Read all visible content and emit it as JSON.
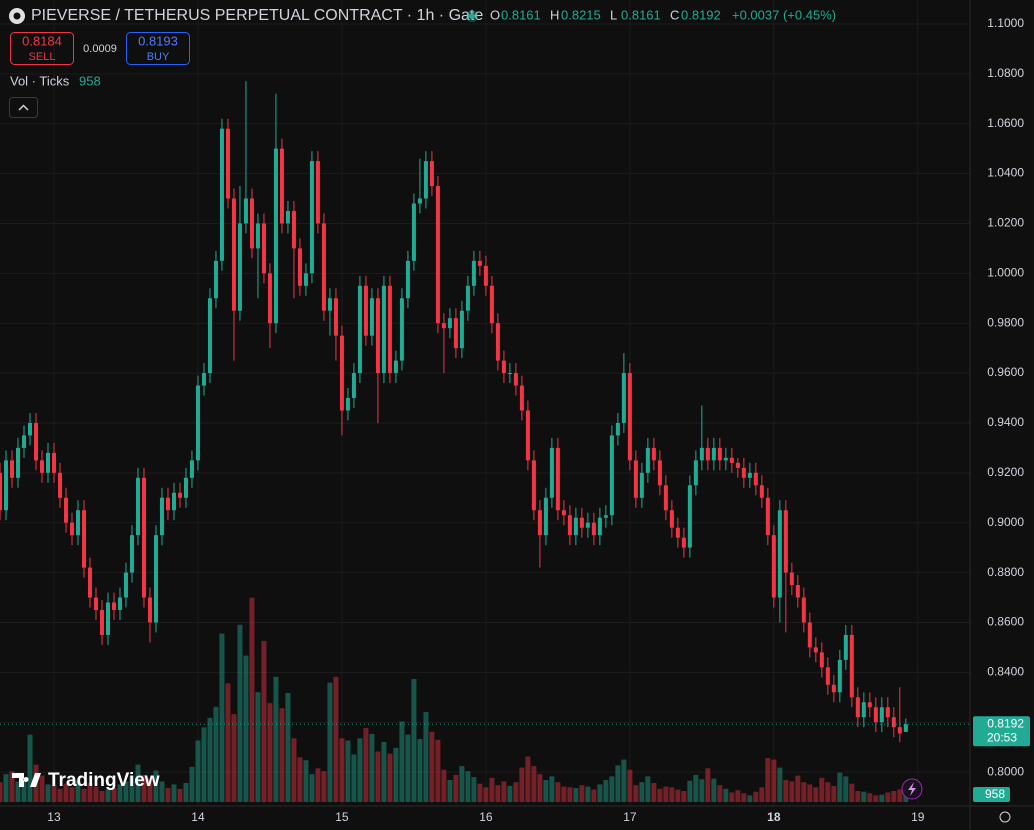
{
  "chart_data": {
    "type": "candlestick",
    "title": "PIEVERSE / TETHERUS PERPETUAL CONTRACT · 1h · Gate",
    "ohlc_keys": [
      "O",
      "H",
      "L",
      "C"
    ],
    "change": "+0.0037 (+0.45%)",
    "sell": {
      "price": 0.8184,
      "label": "SELL"
    },
    "spread": 0.0009,
    "buy": {
      "price": 0.8193,
      "label": "BUY"
    },
    "volume_legend": "Vol · Ticks",
    "countdown": "20:53",
    "branding": "TradingView",
    "up_color": "#22ab94",
    "down_color": "#f23645",
    "grid": true,
    "ylim": [
      0.7864,
      1.1096
    ],
    "yticks": [
      {
        "value": 1.1,
        "label": "1.1000"
      },
      {
        "value": 1.08,
        "label": "1.0800"
      },
      {
        "value": 1.06,
        "label": "1.0600"
      },
      {
        "value": 1.04,
        "label": "1.0400"
      },
      {
        "value": 1.02,
        "label": "1.0200"
      },
      {
        "value": 1.0,
        "label": "1.0000"
      },
      {
        "value": 0.98,
        "label": "0.9800"
      },
      {
        "value": 0.96,
        "label": "0.9600"
      },
      {
        "value": 0.94,
        "label": "0.9400"
      },
      {
        "value": 0.92,
        "label": "0.9200"
      },
      {
        "value": 0.9,
        "label": "0.9000"
      },
      {
        "value": 0.88,
        "label": "0.8800"
      },
      {
        "value": 0.86,
        "label": "0.8600"
      },
      {
        "value": 0.84,
        "label": "0.8400"
      },
      {
        "value": 0.82,
        "label": "0.8200"
      },
      {
        "value": 0.8,
        "label": "0.8000"
      }
    ],
    "xlim": [
      0,
      161.7
    ],
    "xticks": [
      {
        "value": 9,
        "label": "13"
      },
      {
        "value": 33,
        "label": "14"
      },
      {
        "value": 57,
        "label": "15"
      },
      {
        "value": 81,
        "label": "16"
      },
      {
        "value": 105,
        "label": "17"
      },
      {
        "value": 129,
        "label": "18"
      },
      {
        "value": 153,
        "label": "19"
      }
    ],
    "volume_lim": [
      0,
      28000
    ],
    "open": [
      0.92,
      0.905,
      0.925,
      0.918,
      0.93,
      0.935,
      0.94,
      0.925,
      0.92,
      0.928,
      0.92,
      0.91,
      0.9,
      0.895,
      0.905,
      0.882,
      0.87,
      0.865,
      0.855,
      0.868,
      0.865,
      0.87,
      0.88,
      0.895,
      0.918,
      0.87,
      0.86,
      0.895,
      0.91,
      0.905,
      0.912,
      0.91,
      0.918,
      0.925,
      0.955,
      0.96,
      0.99,
      1.005,
      1.058,
      1.03,
      0.985,
      1.02,
      1.03,
      1.01,
      1.02,
      1.0,
      0.98,
      1.05,
      1.02,
      1.025,
      1.01,
      0.995,
      1.0,
      1.045,
      1.02,
      0.985,
      0.99,
      0.975,
      0.945,
      0.95,
      0.96,
      0.995,
      0.975,
      0.99,
      0.96,
      0.995,
      0.96,
      0.965,
      0.99,
      1.005,
      1.028,
      1.03,
      1.045,
      1.035,
      0.98,
      0.978,
      0.982,
      0.97,
      0.985,
      0.995,
      1.005,
      1.003,
      0.995,
      0.98,
      0.965,
      0.96,
      0.96,
      0.955,
      0.945,
      0.925,
      0.905,
      0.895,
      0.91,
      0.93,
      0.905,
      0.903,
      0.895,
      0.902,
      0.898,
      0.9,
      0.895,
      0.902,
      0.903,
      0.935,
      0.94,
      0.96,
      0.925,
      0.91,
      0.92,
      0.93,
      0.925,
      0.915,
      0.905,
      0.898,
      0.894,
      0.89,
      0.915,
      0.925,
      0.93,
      0.925,
      0.93,
      0.925,
      0.926,
      0.924,
      0.922,
      0.918,
      0.92,
      0.915,
      0.91,
      0.895,
      0.87,
      0.905,
      0.88,
      0.875,
      0.87,
      0.86,
      0.85,
      0.848,
      0.842,
      0.835,
      0.832,
      0.845,
      0.855,
      0.83,
      0.822,
      0.828,
      0.826,
      0.82,
      0.826,
      0.822,
      0.818,
      0.8161
    ],
    "high": [
      0.924,
      0.929,
      0.929,
      0.934,
      0.939,
      0.944,
      0.944,
      0.929,
      0.932,
      0.932,
      0.924,
      0.914,
      0.904,
      0.909,
      0.909,
      0.886,
      0.874,
      0.869,
      0.872,
      0.872,
      0.874,
      0.884,
      0.899,
      0.922,
      0.922,
      0.874,
      0.899,
      0.914,
      0.914,
      0.916,
      0.916,
      0.922,
      0.929,
      0.959,
      0.964,
      0.994,
      1.009,
      1.062,
      1.062,
      1.034,
      1.035,
      1.077,
      1.034,
      1.024,
      1.024,
      1.004,
      1.072,
      1.054,
      1.029,
      1.029,
      1.014,
      1.004,
      1.049,
      1.049,
      1.024,
      0.994,
      0.994,
      0.979,
      0.954,
      0.964,
      0.999,
      0.999,
      0.994,
      0.994,
      0.999,
      0.999,
      0.969,
      0.994,
      1.009,
      1.032,
      1.046,
      1.049,
      1.049,
      1.039,
      0.984,
      0.986,
      0.986,
      0.989,
      0.999,
      1.009,
      1.009,
      1.007,
      0.999,
      0.984,
      0.969,
      0.964,
      0.964,
      0.959,
      0.949,
      0.929,
      0.909,
      0.914,
      0.934,
      0.934,
      0.909,
      0.907,
      0.906,
      0.906,
      0.904,
      0.904,
      0.906,
      0.907,
      0.939,
      0.944,
      0.968,
      0.964,
      0.929,
      0.924,
      0.934,
      0.934,
      0.929,
      0.919,
      0.909,
      0.902,
      0.898,
      0.919,
      0.929,
      0.947,
      0.934,
      0.934,
      0.934,
      0.93,
      0.93,
      0.926,
      0.926,
      0.924,
      0.924,
      0.919,
      0.914,
      0.899,
      0.909,
      0.909,
      0.884,
      0.879,
      0.874,
      0.864,
      0.854,
      0.852,
      0.846,
      0.839,
      0.849,
      0.859,
      0.859,
      0.834,
      0.832,
      0.832,
      0.83,
      0.83,
      0.83,
      0.826,
      0.834,
      0.8215
    ],
    "low": [
      0.901,
      0.901,
      0.914,
      0.914,
      0.926,
      0.931,
      0.921,
      0.916,
      0.916,
      0.916,
      0.906,
      0.896,
      0.891,
      0.891,
      0.878,
      0.866,
      0.861,
      0.851,
      0.851,
      0.861,
      0.861,
      0.866,
      0.876,
      0.891,
      0.866,
      0.852,
      0.856,
      0.891,
      0.901,
      0.901,
      0.906,
      0.906,
      0.914,
      0.921,
      0.951,
      0.956,
      0.986,
      1.001,
      1.026,
      0.965,
      0.981,
      1.016,
      1.006,
      0.99,
      0.996,
      0.97,
      0.976,
      1.016,
      1.016,
      0.99,
      0.991,
      0.991,
      0.996,
      1.016,
      0.981,
      0.975,
      0.965,
      0.935,
      0.941,
      0.946,
      0.956,
      0.971,
      0.971,
      0.94,
      0.956,
      0.956,
      0.956,
      0.961,
      0.986,
      1.001,
      1.024,
      1.026,
      1.031,
      0.976,
      0.96,
      0.974,
      0.966,
      0.966,
      0.981,
      0.991,
      0.999,
      0.991,
      0.976,
      0.961,
      0.956,
      0.956,
      0.951,
      0.941,
      0.921,
      0.901,
      0.882,
      0.891,
      0.906,
      0.901,
      0.899,
      0.891,
      0.891,
      0.894,
      0.894,
      0.891,
      0.891,
      0.898,
      0.899,
      0.931,
      0.936,
      0.921,
      0.906,
      0.906,
      0.916,
      0.921,
      0.911,
      0.901,
      0.894,
      0.89,
      0.886,
      0.886,
      0.911,
      0.921,
      0.921,
      0.921,
      0.921,
      0.921,
      0.92,
      0.918,
      0.914,
      0.914,
      0.911,
      0.906,
      0.891,
      0.866,
      0.86,
      0.856,
      0.871,
      0.866,
      0.856,
      0.846,
      0.844,
      0.838,
      0.831,
      0.828,
      0.828,
      0.841,
      0.826,
      0.818,
      0.818,
      0.822,
      0.816,
      0.816,
      0.818,
      0.814,
      0.812,
      0.8161
    ],
    "close": [
      0.905,
      0.925,
      0.918,
      0.93,
      0.935,
      0.94,
      0.925,
      0.92,
      0.928,
      0.92,
      0.91,
      0.9,
      0.895,
      0.905,
      0.882,
      0.87,
      0.865,
      0.855,
      0.868,
      0.865,
      0.87,
      0.88,
      0.895,
      0.918,
      0.87,
      0.86,
      0.895,
      0.91,
      0.905,
      0.912,
      0.91,
      0.918,
      0.925,
      0.955,
      0.96,
      0.99,
      1.005,
      1.058,
      1.03,
      0.985,
      1.02,
      1.03,
      1.01,
      1.02,
      1.0,
      0.98,
      1.05,
      1.02,
      1.025,
      1.01,
      0.995,
      1.0,
      1.045,
      1.02,
      0.985,
      0.99,
      0.975,
      0.945,
      0.95,
      0.96,
      0.995,
      0.975,
      0.99,
      0.96,
      0.995,
      0.96,
      0.965,
      0.99,
      1.005,
      1.028,
      1.03,
      1.045,
      1.035,
      0.98,
      0.978,
      0.982,
      0.97,
      0.985,
      0.995,
      1.005,
      1.003,
      0.995,
      0.98,
      0.965,
      0.96,
      0.96,
      0.955,
      0.945,
      0.925,
      0.905,
      0.895,
      0.91,
      0.93,
      0.905,
      0.903,
      0.895,
      0.902,
      0.898,
      0.9,
      0.895,
      0.902,
      0.903,
      0.935,
      0.94,
      0.96,
      0.925,
      0.91,
      0.92,
      0.93,
      0.925,
      0.915,
      0.905,
      0.898,
      0.894,
      0.89,
      0.915,
      0.925,
      0.93,
      0.925,
      0.93,
      0.925,
      0.926,
      0.924,
      0.922,
      0.918,
      0.92,
      0.915,
      0.91,
      0.895,
      0.87,
      0.905,
      0.88,
      0.875,
      0.87,
      0.86,
      0.85,
      0.848,
      0.842,
      0.835,
      0.832,
      0.845,
      0.855,
      0.83,
      0.822,
      0.828,
      0.826,
      0.82,
      0.826,
      0.822,
      0.818,
      0.8155,
      0.8192
    ],
    "volume": [
      2700,
      3800,
      4200,
      2800,
      3300,
      9200,
      5100,
      3600,
      2400,
      2300,
      1800,
      2500,
      2000,
      2900,
      1800,
      2600,
      2100,
      1500,
      1700,
      1900,
      2400,
      2800,
      3600,
      5100,
      3700,
      3200,
      4300,
      2800,
      1900,
      2400,
      1800,
      2600,
      4800,
      8400,
      10200,
      11500,
      13000,
      23000,
      16200,
      12000,
      24200,
      20000,
      27900,
      15000,
      22000,
      13500,
      17100,
      12800,
      14900,
      8700,
      6100,
      5700,
      3800,
      4600,
      4200,
      16300,
      17100,
      8700,
      8400,
      6500,
      8700,
      10100,
      9300,
      6900,
      8200,
      6600,
      7400,
      11000,
      9200,
      16800,
      8600,
      12300,
      9600,
      8500,
      4400,
      3000,
      3700,
      4900,
      4200,
      3400,
      2500,
      2000,
      3300,
      2300,
      2800,
      2200,
      2700,
      4700,
      6200,
      4900,
      3800,
      3000,
      3500,
      2700,
      2100,
      2000,
      1900,
      2300,
      2100,
      1700,
      2400,
      3000,
      3500,
      5000,
      5800,
      4400,
      2300,
      2700,
      3500,
      2600,
      1800,
      2100,
      2000,
      1700,
      1500,
      2900,
      3700,
      3100,
      4600,
      3200,
      2300,
      1800,
      1300,
      1600,
      1200,
      900,
      1400,
      2000,
      6000,
      5800,
      4700,
      3000,
      2800,
      3600,
      2700,
      2400,
      2000,
      3300,
      2700,
      2200,
      4000,
      3500,
      2500,
      1500,
      1400,
      1200,
      900,
      1000,
      1300,
      1500,
      1700,
      958
    ]
  }
}
